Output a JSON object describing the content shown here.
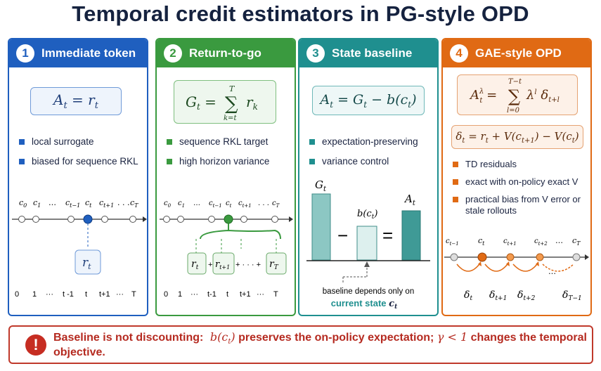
{
  "title": "Temporal credit estimators in PG-style OPD",
  "colors": {
    "blue": "#1f5fbf",
    "green": "#3a9a3f",
    "teal": "#1f8f8f",
    "orange": "#e06a14",
    "red": "#c0392b"
  },
  "panels": [
    {
      "num": "1",
      "title": "Immediate token",
      "formula": "A_t = r_t",
      "bullets": [
        "local surrogate",
        "biased for sequence RKL"
      ],
      "timeline_top": [
        "c0",
        "c1",
        "…",
        "ct−1",
        "ct",
        "ct+1",
        "…",
        "cT"
      ],
      "reward_label": "r_t",
      "timeline_bottom": [
        "0",
        "1",
        "···",
        "t -1",
        "t",
        "t+1",
        "···",
        "T"
      ]
    },
    {
      "num": "2",
      "title": "Return-to-go",
      "formula": "G_t = Σ_{k=t}^{T} r_k",
      "bullets": [
        "sequence RKL target",
        "high horizon variance"
      ],
      "timeline_top": [
        "c0",
        "c1",
        "…",
        "ct−1",
        "ct",
        "ct+1",
        "…",
        "cT"
      ],
      "reward_terms": [
        "r_t",
        "+",
        "r_{t+1}",
        "+ · · · +",
        "r_T"
      ],
      "timeline_bottom": [
        "0",
        "1",
        "···",
        "t-1",
        "t",
        "t+1",
        "···",
        "T"
      ]
    },
    {
      "num": "3",
      "title": "State baseline",
      "formula": "A_t = G_t − b(c_t)",
      "bullets": [
        "expectation-preserving",
        "variance control"
      ],
      "bar_labels": [
        "G_t",
        "b(c_t)",
        "A_t"
      ],
      "ops": [
        "−",
        "="
      ],
      "note_line1": "baseline depends only on",
      "note_line2": "current state c_t"
    },
    {
      "num": "4",
      "title": "GAE-style OPD",
      "formula1": "A_t^λ = Σ_{l=0}^{T−t} λ^l δ_{t+l}",
      "formula2": "δ_t = r_t + V(c_{t+1}) − V(c_t)",
      "bullets": [
        "TD residuals",
        "exact with on-policy exact V",
        "practical bias from V error or stale rollouts"
      ],
      "timeline_top": [
        "ct−1",
        "ct",
        "ct+1",
        "ct+2",
        "…",
        "cT"
      ],
      "deltas": [
        "δt",
        "δt+1",
        "δt+2",
        "…",
        "δT−1"
      ]
    }
  ],
  "footer": {
    "icon": "!",
    "bold": "Baseline is not discounting:",
    "rest_pre": "b(c_t)",
    "rest_mid": " preserves the on-policy expectation; ",
    "rest_gamma": "γ < 1",
    "rest_end": " changes the temporal objective."
  }
}
